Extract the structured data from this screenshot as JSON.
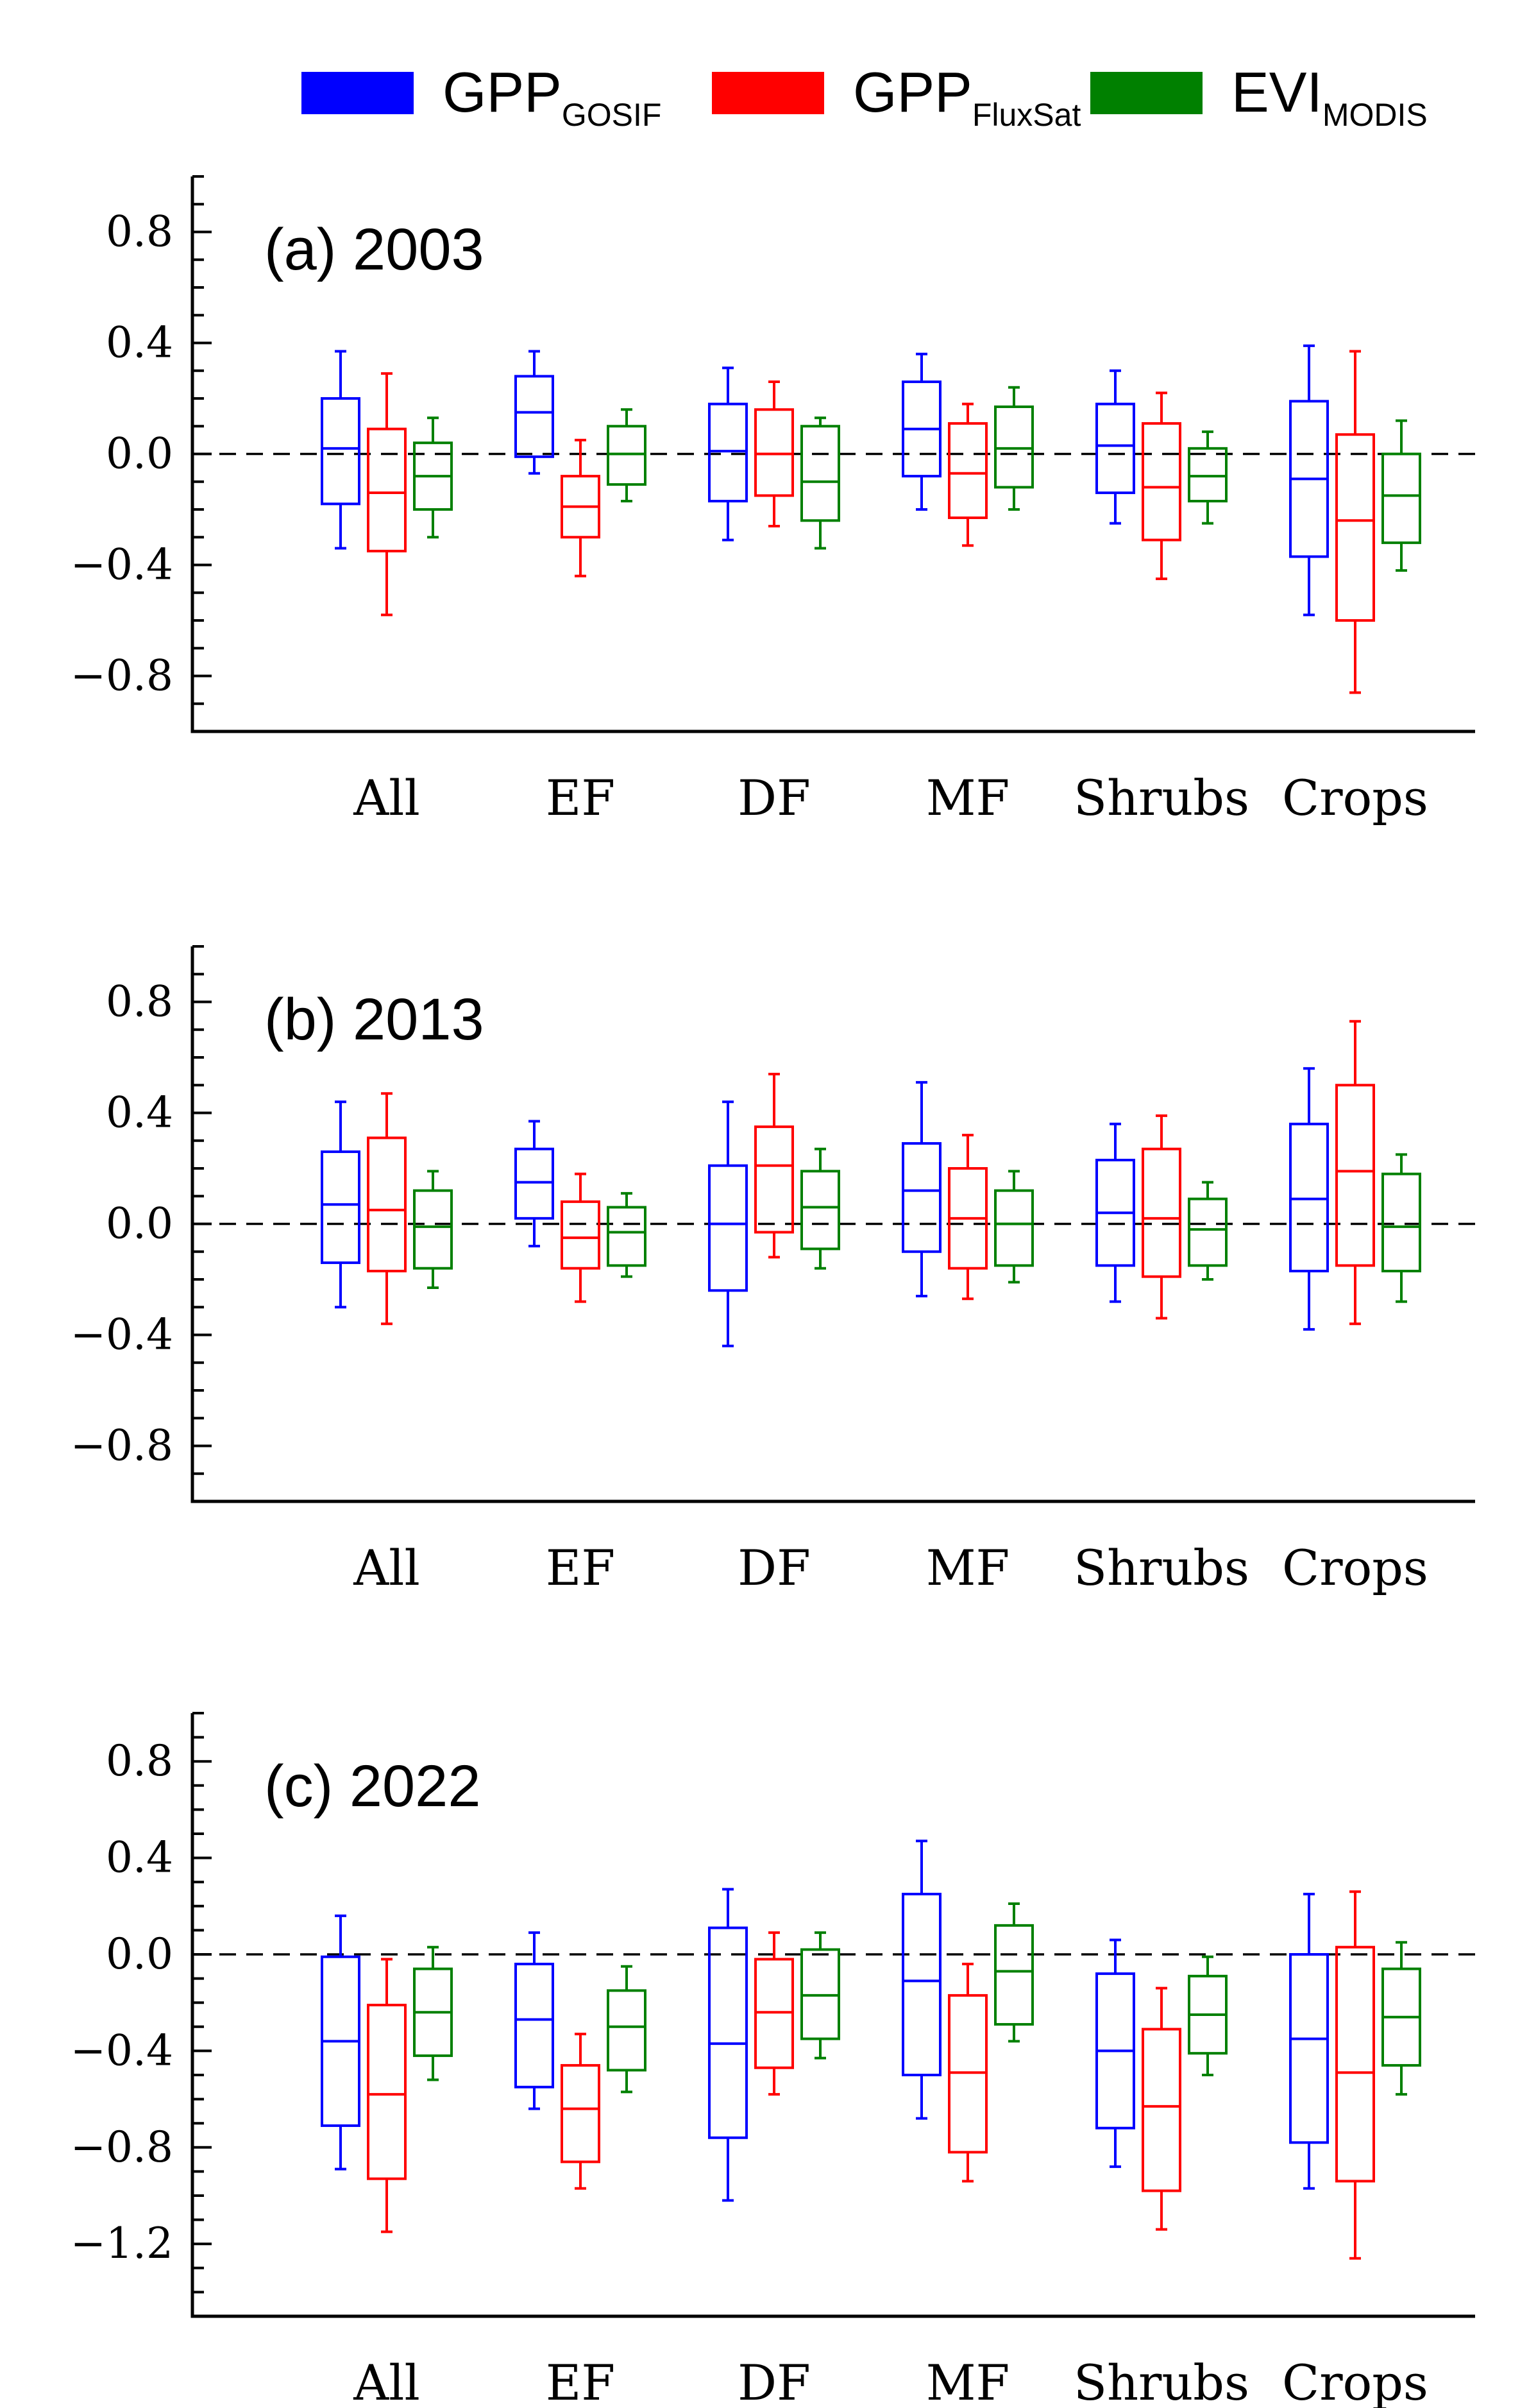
{
  "chart_data": [
    {
      "type": "box",
      "title": "(a) 2003",
      "categories": [
        "All",
        "EF",
        "DF",
        "MF",
        "Shrubs",
        "Crops"
      ],
      "ylim": [
        -1.0,
        1.0
      ],
      "yticks": [
        "0.8",
        "0.4",
        "0.0",
        "-0.4",
        "-0.8"
      ],
      "ytick_values": [
        0.8,
        0.4,
        0.0,
        -0.4,
        -0.8
      ],
      "reference_line": 0,
      "series": [
        {
          "name": "GPP_GOSIF",
          "color": "#0000ff",
          "boxes": [
            {
              "min": -0.34,
              "q1": -0.18,
              "median": 0.02,
              "q3": 0.2,
              "max": 0.37
            },
            {
              "min": -0.07,
              "q1": -0.01,
              "median": 0.15,
              "q3": 0.28,
              "max": 0.37
            },
            {
              "min": -0.31,
              "q1": -0.17,
              "median": 0.01,
              "q3": 0.18,
              "max": 0.31
            },
            {
              "min": -0.2,
              "q1": -0.08,
              "median": 0.09,
              "q3": 0.26,
              "max": 0.36
            },
            {
              "min": -0.25,
              "q1": -0.14,
              "median": 0.03,
              "q3": 0.18,
              "max": 0.3
            },
            {
              "min": -0.58,
              "q1": -0.37,
              "median": -0.09,
              "q3": 0.19,
              "max": 0.39
            }
          ]
        },
        {
          "name": "GPP_FluxSat",
          "color": "#ff0000",
          "boxes": [
            {
              "min": -0.58,
              "q1": -0.35,
              "median": -0.14,
              "q3": 0.09,
              "max": 0.29
            },
            {
              "min": -0.44,
              "q1": -0.3,
              "median": -0.19,
              "q3": -0.08,
              "max": 0.05
            },
            {
              "min": -0.26,
              "q1": -0.15,
              "median": 0.0,
              "q3": 0.16,
              "max": 0.26
            },
            {
              "min": -0.33,
              "q1": -0.23,
              "median": -0.07,
              "q3": 0.11,
              "max": 0.18
            },
            {
              "min": -0.45,
              "q1": -0.31,
              "median": -0.12,
              "q3": 0.11,
              "max": 0.22
            },
            {
              "min": -0.86,
              "q1": -0.6,
              "median": -0.24,
              "q3": 0.07,
              "max": 0.37
            }
          ]
        },
        {
          "name": "EVI_MODIS",
          "color": "#008000",
          "boxes": [
            {
              "min": -0.3,
              "q1": -0.2,
              "median": -0.08,
              "q3": 0.04,
              "max": 0.13
            },
            {
              "min": -0.17,
              "q1": -0.11,
              "median": 0.0,
              "q3": 0.1,
              "max": 0.16
            },
            {
              "min": -0.34,
              "q1": -0.24,
              "median": -0.1,
              "q3": 0.1,
              "max": 0.13
            },
            {
              "min": -0.2,
              "q1": -0.12,
              "median": 0.02,
              "q3": 0.17,
              "max": 0.24
            },
            {
              "min": -0.25,
              "q1": -0.17,
              "median": -0.08,
              "q3": 0.02,
              "max": 0.08
            },
            {
              "min": -0.42,
              "q1": -0.32,
              "median": -0.15,
              "q3": 0.0,
              "max": 0.12
            }
          ]
        }
      ]
    },
    {
      "type": "box",
      "title": "(b) 2013",
      "categories": [
        "All",
        "EF",
        "DF",
        "MF",
        "Shrubs",
        "Crops"
      ],
      "ylim": [
        -1.0,
        1.0
      ],
      "yticks": [
        "0.8",
        "0.4",
        "0.0",
        "-0.4",
        "-0.8"
      ],
      "ytick_values": [
        0.8,
        0.4,
        0.0,
        -0.4,
        -0.8
      ],
      "reference_line": 0,
      "series": [
        {
          "name": "GPP_GOSIF",
          "color": "#0000ff",
          "boxes": [
            {
              "min": -0.3,
              "q1": -0.14,
              "median": 0.07,
              "q3": 0.26,
              "max": 0.44
            },
            {
              "min": -0.08,
              "q1": 0.02,
              "median": 0.15,
              "q3": 0.27,
              "max": 0.37
            },
            {
              "min": -0.44,
              "q1": -0.24,
              "median": 0.0,
              "q3": 0.21,
              "max": 0.44
            },
            {
              "min": -0.26,
              "q1": -0.1,
              "median": 0.12,
              "q3": 0.29,
              "max": 0.51
            },
            {
              "min": -0.28,
              "q1": -0.15,
              "median": 0.04,
              "q3": 0.23,
              "max": 0.36
            },
            {
              "min": -0.38,
              "q1": -0.17,
              "median": 0.09,
              "q3": 0.36,
              "max": 0.56
            }
          ]
        },
        {
          "name": "GPP_FluxSat",
          "color": "#ff0000",
          "boxes": [
            {
              "min": -0.36,
              "q1": -0.17,
              "median": 0.05,
              "q3": 0.31,
              "max": 0.47
            },
            {
              "min": -0.28,
              "q1": -0.16,
              "median": -0.05,
              "q3": 0.08,
              "max": 0.18
            },
            {
              "min": -0.12,
              "q1": -0.03,
              "median": 0.21,
              "q3": 0.35,
              "max": 0.54
            },
            {
              "min": -0.27,
              "q1": -0.16,
              "median": 0.02,
              "q3": 0.2,
              "max": 0.32
            },
            {
              "min": -0.34,
              "q1": -0.19,
              "median": 0.02,
              "q3": 0.27,
              "max": 0.39
            },
            {
              "min": -0.36,
              "q1": -0.15,
              "median": 0.19,
              "q3": 0.5,
              "max": 0.73
            }
          ]
        },
        {
          "name": "EVI_MODIS",
          "color": "#008000",
          "boxes": [
            {
              "min": -0.23,
              "q1": -0.16,
              "median": -0.01,
              "q3": 0.12,
              "max": 0.19
            },
            {
              "min": -0.19,
              "q1": -0.15,
              "median": -0.03,
              "q3": 0.06,
              "max": 0.11
            },
            {
              "min": -0.16,
              "q1": -0.09,
              "median": 0.06,
              "q3": 0.19,
              "max": 0.27
            },
            {
              "min": -0.21,
              "q1": -0.15,
              "median": 0.0,
              "q3": 0.12,
              "max": 0.19
            },
            {
              "min": -0.2,
              "q1": -0.15,
              "median": -0.02,
              "q3": 0.09,
              "max": 0.15
            },
            {
              "min": -0.28,
              "q1": -0.17,
              "median": -0.01,
              "q3": 0.18,
              "max": 0.25
            }
          ]
        }
      ]
    },
    {
      "type": "box",
      "title": "(c) 2022",
      "categories": [
        "All",
        "EF",
        "DF",
        "MF",
        "Shrubs",
        "Crops"
      ],
      "ylim": [
        -1.5,
        1.0
      ],
      "yticks": [
        "0.8",
        "0.4",
        "0.0",
        "-0.4",
        "-0.8",
        "-1.2"
      ],
      "ytick_values": [
        0.8,
        0.4,
        0.0,
        -0.4,
        -0.8,
        -1.2
      ],
      "reference_line": 0,
      "series": [
        {
          "name": "GPP_GOSIF",
          "color": "#0000ff",
          "boxes": [
            {
              "min": -0.89,
              "q1": -0.71,
              "median": -0.36,
              "q3": -0.01,
              "max": 0.16
            },
            {
              "min": -0.64,
              "q1": -0.55,
              "median": -0.27,
              "q3": -0.04,
              "max": 0.09
            },
            {
              "min": -1.02,
              "q1": -0.76,
              "median": -0.37,
              "q3": 0.11,
              "max": 0.27
            },
            {
              "min": -0.68,
              "q1": -0.5,
              "median": -0.11,
              "q3": 0.25,
              "max": 0.47
            },
            {
              "min": -0.88,
              "q1": -0.72,
              "median": -0.4,
              "q3": -0.08,
              "max": 0.06
            },
            {
              "min": -0.97,
              "q1": -0.78,
              "median": -0.35,
              "q3": 0.0,
              "max": 0.25
            }
          ]
        },
        {
          "name": "GPP_FluxSat",
          "color": "#ff0000",
          "boxes": [
            {
              "min": -1.15,
              "q1": -0.93,
              "median": -0.58,
              "q3": -0.21,
              "max": -0.02
            },
            {
              "min": -0.97,
              "q1": -0.86,
              "median": -0.64,
              "q3": -0.46,
              "max": -0.33
            },
            {
              "min": -0.58,
              "q1": -0.47,
              "median": -0.24,
              "q3": -0.02,
              "max": 0.09
            },
            {
              "min": -0.94,
              "q1": -0.82,
              "median": -0.49,
              "q3": -0.17,
              "max": -0.04
            },
            {
              "min": -1.14,
              "q1": -0.98,
              "median": -0.63,
              "q3": -0.31,
              "max": -0.14
            },
            {
              "min": -1.26,
              "q1": -0.94,
              "median": -0.49,
              "q3": 0.03,
              "max": 0.26
            }
          ]
        },
        {
          "name": "EVI_MODIS",
          "color": "#008000",
          "boxes": [
            {
              "min": -0.52,
              "q1": -0.42,
              "median": -0.24,
              "q3": -0.06,
              "max": 0.03
            },
            {
              "min": -0.57,
              "q1": -0.48,
              "median": -0.3,
              "q3": -0.15,
              "max": -0.05
            },
            {
              "min": -0.43,
              "q1": -0.35,
              "median": -0.17,
              "q3": 0.02,
              "max": 0.09
            },
            {
              "min": -0.36,
              "q1": -0.29,
              "median": -0.07,
              "q3": 0.12,
              "max": 0.21
            },
            {
              "min": -0.5,
              "q1": -0.41,
              "median": -0.25,
              "q3": -0.09,
              "max": -0.01
            },
            {
              "min": -0.58,
              "q1": -0.46,
              "median": -0.26,
              "q3": -0.06,
              "max": 0.05
            }
          ]
        }
      ]
    }
  ],
  "legend": [
    {
      "main": "GPP",
      "sub": "GOSIF",
      "color": "#0000ff"
    },
    {
      "main": "GPP",
      "sub": "FluxSat",
      "color": "#ff0000"
    },
    {
      "main": "EVI",
      "sub": "MODIS",
      "color": "#008000"
    }
  ]
}
